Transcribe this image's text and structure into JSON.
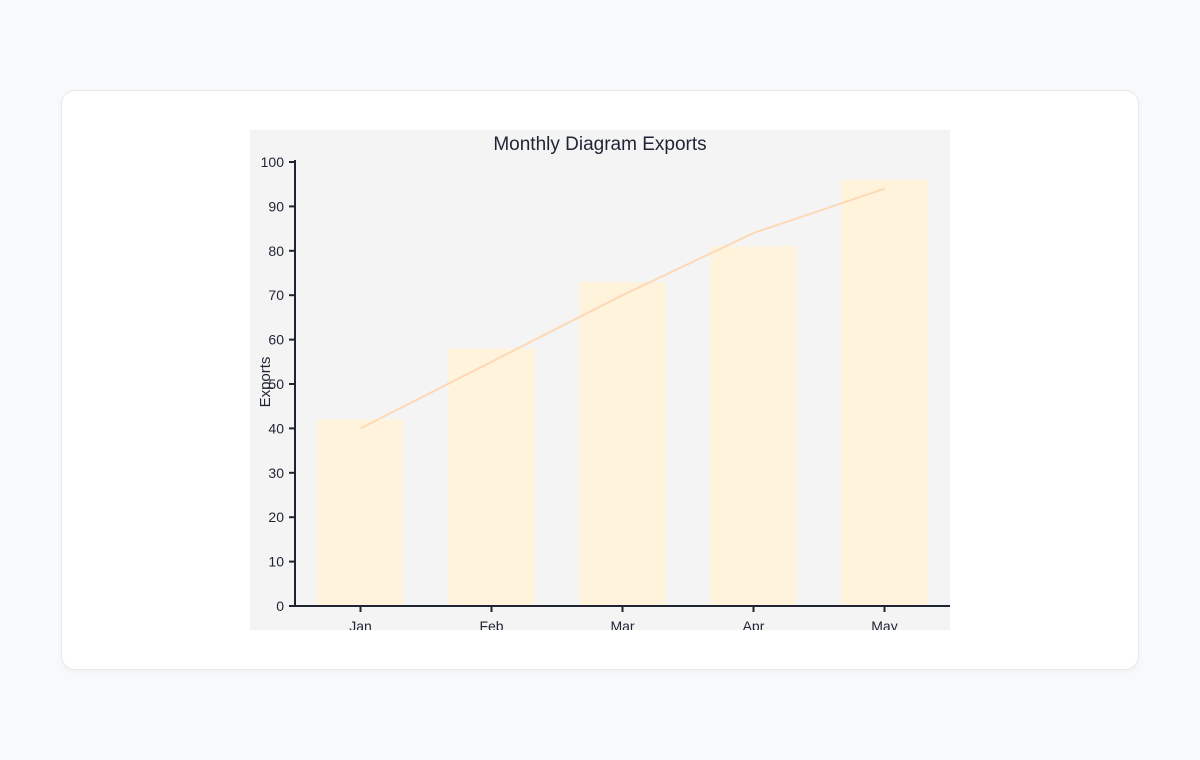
{
  "chart_data": {
    "type": "bar",
    "title": "Monthly Diagram Exports",
    "ylabel": "Exports",
    "xlabel": "",
    "categories": [
      "Jan",
      "Feb",
      "Mar",
      "Apr",
      "May"
    ],
    "series": [
      {
        "kind": "bar",
        "values": [
          42,
          58,
          73,
          81,
          96
        ]
      },
      {
        "kind": "line",
        "values": [
          40,
          55,
          70,
          84,
          94
        ]
      }
    ],
    "ylim": [
      0,
      100
    ],
    "yticks": [
      "0",
      "10",
      "20",
      "30",
      "40",
      "50",
      "60",
      "70",
      "80",
      "90",
      "100"
    ],
    "grid": false,
    "colors": {
      "background": "#f4f4f5",
      "bar": "#fff3dc",
      "line": "#fdd9b5",
      "axis": "#1f2433",
      "text": "#1f2433"
    }
  }
}
